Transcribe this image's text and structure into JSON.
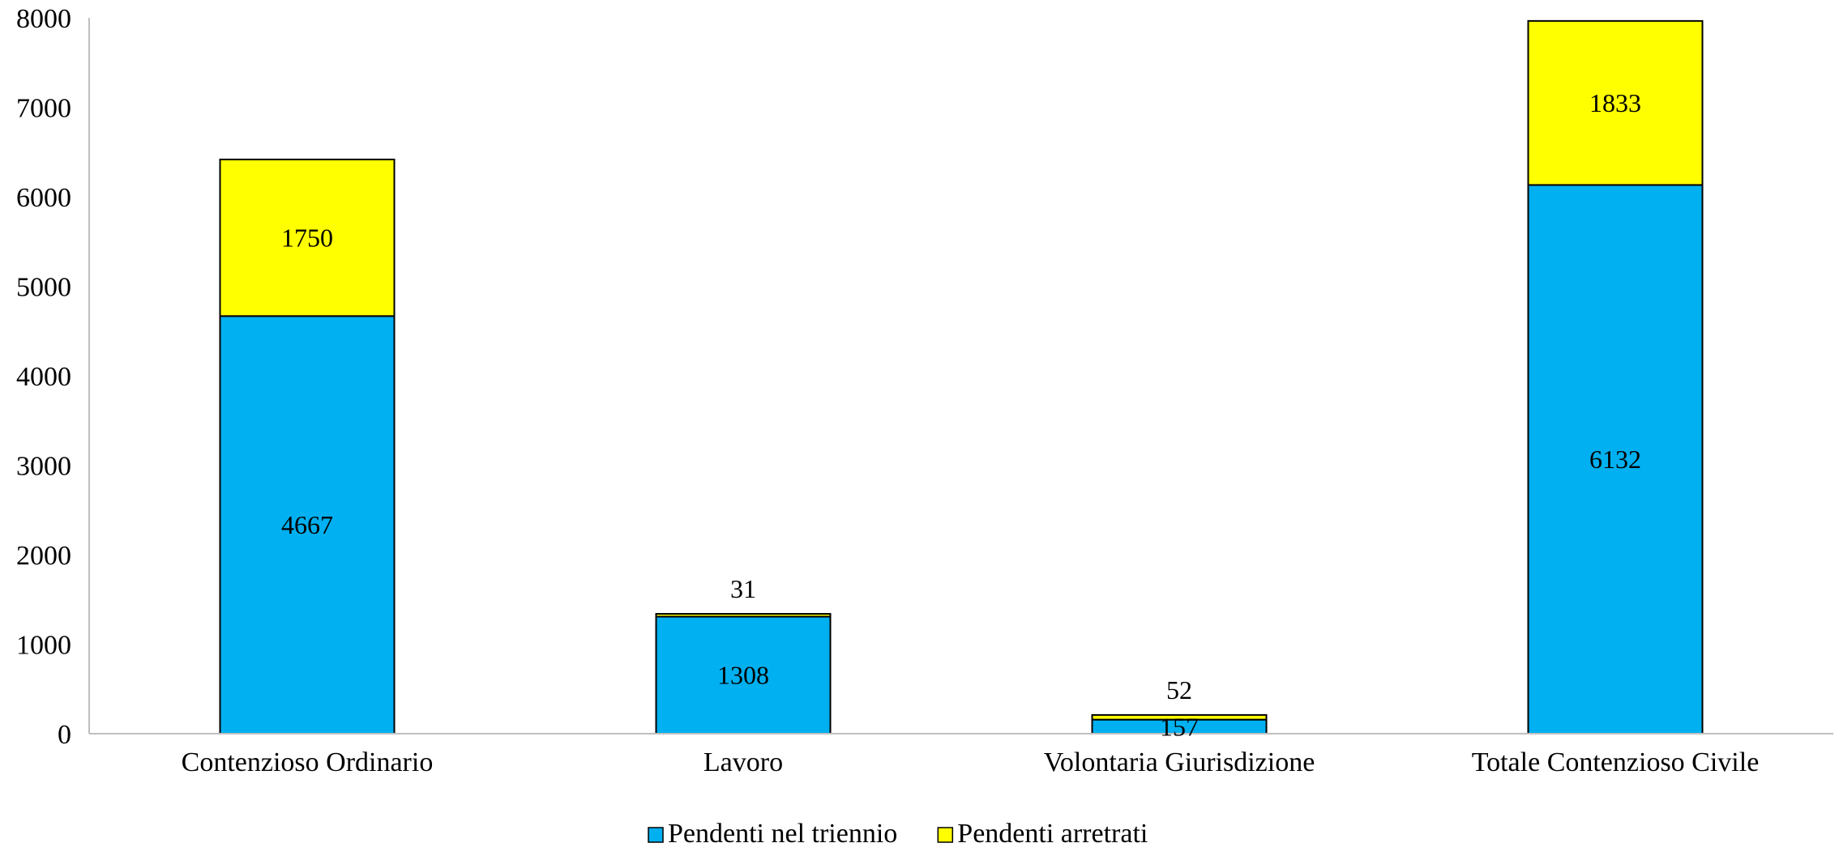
{
  "chart_data": {
    "type": "bar",
    "stacked": true,
    "categories": [
      "Contenzioso Ordinario",
      "Lavoro",
      "Volontaria Giurisdizione",
      "Totale Contenzioso Civile"
    ],
    "series": [
      {
        "name": "Pendenti nel triennio",
        "values": [
          4667,
          1308,
          157,
          6132
        ],
        "color": "#00B0F0"
      },
      {
        "name": "Pendenti arretrati",
        "values": [
          1750,
          31,
          52,
          1833
        ],
        "color": "#FFFF00"
      }
    ],
    "ylim": [
      0,
      8000
    ],
    "yticks": [
      0,
      1000,
      2000,
      3000,
      4000,
      5000,
      6000,
      7000,
      8000
    ],
    "grid": false,
    "legend_position": "bottom"
  }
}
